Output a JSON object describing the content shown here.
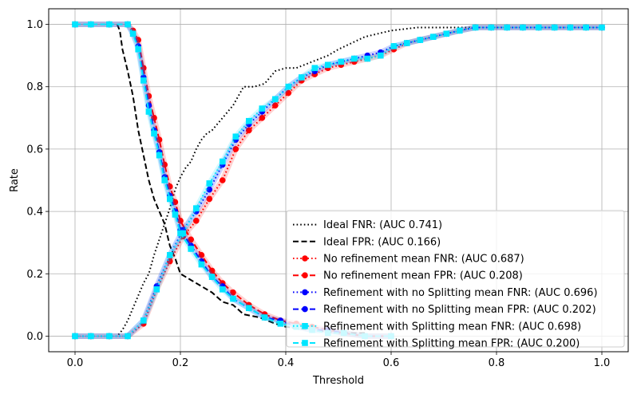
{
  "chart_data": {
    "type": "line",
    "title": "",
    "xlabel": "Threshold",
    "ylabel": "Rate",
    "xlim": [
      -0.05,
      1.05
    ],
    "ylim": [
      -0.05,
      1.05
    ],
    "xticks": [
      0.0,
      0.2,
      0.4,
      0.6,
      0.8,
      1.0
    ],
    "xtick_labels": [
      "0.0",
      "0.2",
      "0.4",
      "0.6",
      "0.8",
      "1.0"
    ],
    "yticks": [
      0.0,
      0.2,
      0.4,
      0.6,
      0.8,
      1.0
    ],
    "ytick_labels": [
      "0.0",
      "0.2",
      "0.4",
      "0.6",
      "0.8",
      "1.0"
    ],
    "grid": true,
    "legend_position": "lower-right",
    "series": [
      {
        "name": "Ideal FNR: (AUC 0.741)",
        "color": "#000000",
        "dash": "dotted",
        "marker": "none",
        "x": [
          0.0,
          0.08,
          0.09,
          0.1,
          0.11,
          0.12,
          0.13,
          0.14,
          0.15,
          0.16,
          0.17,
          0.18,
          0.19,
          0.2,
          0.21,
          0.22,
          0.23,
          0.24,
          0.25,
          0.26,
          0.28,
          0.3,
          0.32,
          0.34,
          0.36,
          0.38,
          0.4,
          0.42,
          0.45,
          0.48,
          0.5,
          0.55,
          0.6,
          0.65,
          0.7,
          0.8,
          0.9,
          1.0
        ],
        "y": [
          0.0,
          0.0,
          0.02,
          0.05,
          0.09,
          0.13,
          0.17,
          0.2,
          0.26,
          0.31,
          0.36,
          0.41,
          0.47,
          0.51,
          0.54,
          0.56,
          0.6,
          0.63,
          0.65,
          0.66,
          0.7,
          0.74,
          0.8,
          0.8,
          0.81,
          0.85,
          0.86,
          0.86,
          0.88,
          0.9,
          0.92,
          0.96,
          0.98,
          0.99,
          0.99,
          0.99,
          0.99,
          0.99
        ]
      },
      {
        "name": "Ideal FPR: (AUC 0.166)",
        "color": "#000000",
        "dash": "dashed",
        "marker": "none",
        "x": [
          0.0,
          0.08,
          0.085,
          0.09,
          0.1,
          0.11,
          0.12,
          0.13,
          0.14,
          0.15,
          0.16,
          0.17,
          0.18,
          0.19,
          0.2,
          0.22,
          0.24,
          0.26,
          0.28,
          0.3,
          0.32,
          0.35,
          0.38,
          0.4,
          0.45,
          0.5,
          0.55
        ],
        "y": [
          1.0,
          1.0,
          0.98,
          0.92,
          0.85,
          0.77,
          0.66,
          0.58,
          0.5,
          0.44,
          0.4,
          0.36,
          0.29,
          0.25,
          0.2,
          0.18,
          0.16,
          0.14,
          0.11,
          0.1,
          0.07,
          0.06,
          0.04,
          0.03,
          0.02,
          0.01,
          0.01
        ]
      },
      {
        "name": "No refinement mean FNR: (AUC 0.687)",
        "color": "#ff0000",
        "dash": "dotted",
        "marker": "circle",
        "x": [
          0.0,
          0.03,
          0.065,
          0.1,
          0.13,
          0.155,
          0.18,
          0.205,
          0.23,
          0.255,
          0.28,
          0.305,
          0.33,
          0.355,
          0.38,
          0.405,
          0.43,
          0.455,
          0.48,
          0.505,
          0.53,
          0.555,
          0.58,
          0.605,
          0.63,
          0.655,
          0.68,
          0.705,
          0.73,
          0.76,
          0.79,
          0.82,
          0.85,
          0.88,
          0.91,
          0.94,
          0.97,
          1.0
        ],
        "y": [
          0.0,
          0.0,
          0.0,
          0.0,
          0.04,
          0.15,
          0.24,
          0.32,
          0.37,
          0.44,
          0.5,
          0.6,
          0.66,
          0.7,
          0.74,
          0.78,
          0.82,
          0.84,
          0.86,
          0.87,
          0.88,
          0.89,
          0.9,
          0.92,
          0.94,
          0.95,
          0.96,
          0.97,
          0.98,
          0.99,
          0.99,
          0.99,
          0.99,
          0.99,
          0.99,
          0.99,
          0.99,
          0.99
        ]
      },
      {
        "name": "No refinement mean FPR: (AUC 0.208)",
        "color": "#ff0000",
        "dash": "dashed",
        "marker": "circle",
        "x": [
          0.0,
          0.03,
          0.065,
          0.1,
          0.11,
          0.12,
          0.13,
          0.14,
          0.15,
          0.16,
          0.17,
          0.18,
          0.19,
          0.2,
          0.22,
          0.24,
          0.26,
          0.28,
          0.3,
          0.33,
          0.36,
          0.39,
          0.42,
          0.45,
          0.48,
          0.51,
          0.55,
          0.6
        ],
        "y": [
          1.0,
          1.0,
          1.0,
          1.0,
          0.98,
          0.95,
          0.86,
          0.77,
          0.7,
          0.63,
          0.55,
          0.48,
          0.43,
          0.37,
          0.31,
          0.26,
          0.21,
          0.17,
          0.14,
          0.1,
          0.07,
          0.05,
          0.04,
          0.03,
          0.02,
          0.01,
          0.0,
          0.0
        ]
      },
      {
        "name": "Refinement with no Splitting mean FNR: (AUC 0.696)",
        "color": "#0000ff",
        "dash": "dotted",
        "marker": "circle",
        "x": [
          0.0,
          0.03,
          0.065,
          0.1,
          0.13,
          0.155,
          0.18,
          0.205,
          0.23,
          0.255,
          0.28,
          0.305,
          0.33,
          0.355,
          0.38,
          0.405,
          0.43,
          0.455,
          0.48,
          0.505,
          0.53,
          0.555,
          0.58,
          0.605,
          0.63,
          0.655,
          0.68,
          0.705,
          0.73,
          0.76,
          0.79,
          0.82,
          0.85,
          0.88,
          0.91,
          0.94,
          0.97,
          1.0
        ],
        "y": [
          0.0,
          0.0,
          0.0,
          0.0,
          0.05,
          0.16,
          0.26,
          0.34,
          0.4,
          0.47,
          0.55,
          0.63,
          0.68,
          0.72,
          0.76,
          0.8,
          0.83,
          0.85,
          0.87,
          0.88,
          0.89,
          0.9,
          0.91,
          0.93,
          0.94,
          0.95,
          0.96,
          0.97,
          0.98,
          0.99,
          0.99,
          0.99,
          0.99,
          0.99,
          0.99,
          0.99,
          0.99,
          0.99
        ]
      },
      {
        "name": "Refinement with no Splitting mean FPR: (AUC 0.202)",
        "color": "#0000ff",
        "dash": "dashed",
        "marker": "circle",
        "x": [
          0.0,
          0.03,
          0.065,
          0.1,
          0.11,
          0.12,
          0.13,
          0.14,
          0.15,
          0.16,
          0.17,
          0.18,
          0.19,
          0.2,
          0.22,
          0.24,
          0.26,
          0.28,
          0.3,
          0.33,
          0.36,
          0.39,
          0.42,
          0.45,
          0.48,
          0.51,
          0.55,
          0.6
        ],
        "y": [
          1.0,
          1.0,
          1.0,
          1.0,
          0.97,
          0.93,
          0.83,
          0.74,
          0.66,
          0.59,
          0.51,
          0.45,
          0.4,
          0.34,
          0.29,
          0.24,
          0.19,
          0.16,
          0.12,
          0.09,
          0.06,
          0.05,
          0.03,
          0.02,
          0.02,
          0.01,
          0.0,
          0.0
        ]
      },
      {
        "name": "Refinement with Splitting mean FNR: (AUC 0.698)",
        "color": "#00e5ff",
        "dash": "dotted",
        "marker": "square",
        "x": [
          0.0,
          0.03,
          0.065,
          0.1,
          0.13,
          0.155,
          0.18,
          0.205,
          0.23,
          0.255,
          0.28,
          0.305,
          0.33,
          0.355,
          0.38,
          0.405,
          0.43,
          0.455,
          0.48,
          0.505,
          0.53,
          0.555,
          0.58,
          0.605,
          0.63,
          0.655,
          0.68,
          0.705,
          0.73,
          0.76,
          0.79,
          0.82,
          0.85,
          0.88,
          0.91,
          0.94,
          0.97,
          1.0
        ],
        "y": [
          0.0,
          0.0,
          0.0,
          0.0,
          0.05,
          0.15,
          0.26,
          0.33,
          0.41,
          0.49,
          0.56,
          0.64,
          0.69,
          0.73,
          0.76,
          0.8,
          0.83,
          0.86,
          0.87,
          0.88,
          0.89,
          0.89,
          0.9,
          0.93,
          0.94,
          0.95,
          0.96,
          0.97,
          0.98,
          0.99,
          0.99,
          0.99,
          0.99,
          0.99,
          0.99,
          0.99,
          0.99,
          0.99
        ]
      },
      {
        "name": "Refinement with Splitting mean FPR: (AUC 0.200)",
        "color": "#00e5ff",
        "dash": "dashed",
        "marker": "square",
        "x": [
          0.0,
          0.03,
          0.065,
          0.1,
          0.11,
          0.12,
          0.13,
          0.14,
          0.15,
          0.16,
          0.17,
          0.18,
          0.19,
          0.2,
          0.22,
          0.24,
          0.26,
          0.28,
          0.3,
          0.33,
          0.36,
          0.39,
          0.42,
          0.45,
          0.48,
          0.51,
          0.55,
          0.6
        ],
        "y": [
          1.0,
          1.0,
          1.0,
          1.0,
          0.97,
          0.92,
          0.82,
          0.72,
          0.65,
          0.58,
          0.5,
          0.44,
          0.39,
          0.33,
          0.28,
          0.23,
          0.19,
          0.15,
          0.12,
          0.09,
          0.06,
          0.04,
          0.03,
          0.02,
          0.01,
          0.01,
          0.0,
          0.0
        ]
      }
    ]
  }
}
